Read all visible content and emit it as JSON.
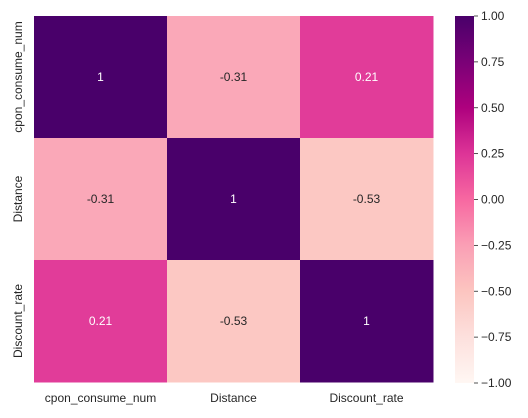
{
  "chart_data": {
    "type": "heatmap",
    "x_labels": [
      "cpon_consume_num",
      "Distance",
      "Discount_rate"
    ],
    "y_labels": [
      "cpon_consume_num",
      "Distance",
      "Discount_rate"
    ],
    "values": [
      [
        1,
        -0.31,
        0.21
      ],
      [
        -0.31,
        1,
        -0.53
      ],
      [
        0.21,
        -0.53,
        1
      ]
    ],
    "cell_labels": [
      [
        "1",
        "-0.31",
        "0.21"
      ],
      [
        "-0.31",
        "1",
        "-0.53"
      ],
      [
        "0.21",
        "-0.53",
        "1"
      ]
    ],
    "vmin": -1,
    "vmax": 1,
    "colormap": "RdPu",
    "colorbar_ticks": [
      1.0,
      0.75,
      0.5,
      0.25,
      0.0,
      -0.25,
      -0.5,
      -0.75,
      -1.0
    ],
    "colorbar_tick_labels": [
      "1.00",
      "0.75",
      "0.50",
      "0.25",
      "0.00",
      "−0.25",
      "−0.50",
      "−0.75",
      "−1.00"
    ]
  }
}
